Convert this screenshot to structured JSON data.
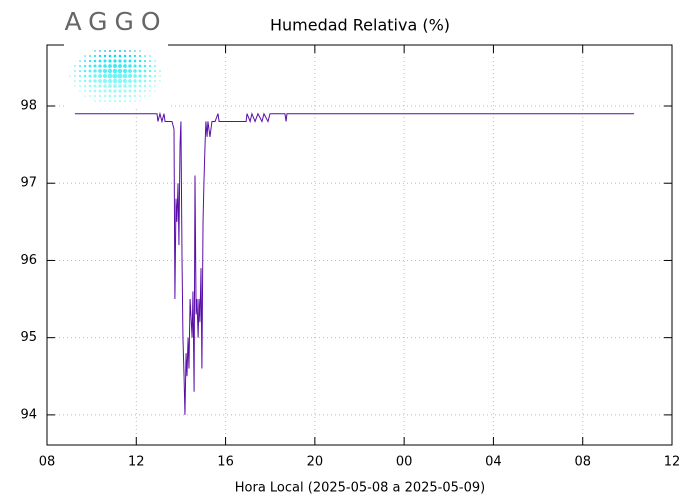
{
  "logo": "AGGO",
  "chart_data": {
    "type": "line",
    "title": "Humedad Relativa (%)",
    "x_label": "Hora Local (2025-05-08 a 2025-05-09)",
    "x": [
      9.25,
      12.93,
      12.97,
      13.06,
      13.15,
      13.24,
      13.29,
      13.6,
      13.69,
      13.73,
      13.78,
      13.82,
      13.87,
      13.91,
      13.96,
      14.0,
      14.05,
      14.09,
      14.14,
      14.18,
      14.23,
      14.27,
      14.32,
      14.36,
      14.41,
      14.5,
      14.54,
      14.59,
      14.63,
      14.68,
      14.72,
      14.77,
      14.81,
      14.85,
      14.9,
      14.94,
      14.99,
      15.03,
      15.08,
      15.12,
      15.17,
      15.21,
      15.3,
      15.39,
      15.53,
      15.66,
      15.71,
      16.92,
      16.96,
      17.1,
      17.18,
      17.32,
      17.45,
      17.63,
      17.72,
      17.9,
      17.99,
      18.66,
      18.71,
      18.75,
      34.3
    ],
    "series": [
      {
        "color": "#5a0ea8",
        "values": [
          97.9,
          97.9,
          97.8,
          97.9,
          97.8,
          97.9,
          97.8,
          97.8,
          97.7,
          95.5,
          96.8,
          96.5,
          97.0,
          96.2,
          97.5,
          97.8,
          96.0,
          95.0,
          94.5,
          94.0,
          94.8,
          94.5,
          95.0,
          94.6,
          95.5,
          95.0,
          95.6,
          94.3,
          97.1,
          95.3,
          95.5,
          95.0,
          95.5,
          95.2,
          95.9,
          94.6,
          96.5,
          97.0,
          97.5,
          97.8,
          97.6,
          97.8,
          97.6,
          97.8,
          97.8,
          97.9,
          97.8,
          97.8,
          97.9,
          97.8,
          97.9,
          97.8,
          97.9,
          97.8,
          97.9,
          97.8,
          97.9,
          97.9,
          97.8,
          97.9,
          97.9
        ]
      }
    ],
    "xlim": [
      8,
      36
    ],
    "xticks": [
      {
        "value": 8,
        "label": "08"
      },
      12,
      16,
      20,
      {
        "value": 24,
        "label": "00"
      },
      {
        "value": 28,
        "label": "04"
      },
      {
        "value": 32,
        "label": "08"
      },
      {
        "value": 36,
        "label": "12"
      }
    ],
    "ylim": [
      93.61,
      98.79
    ],
    "yticks": [
      94,
      95,
      96,
      97,
      98
    ],
    "grid": true
  }
}
